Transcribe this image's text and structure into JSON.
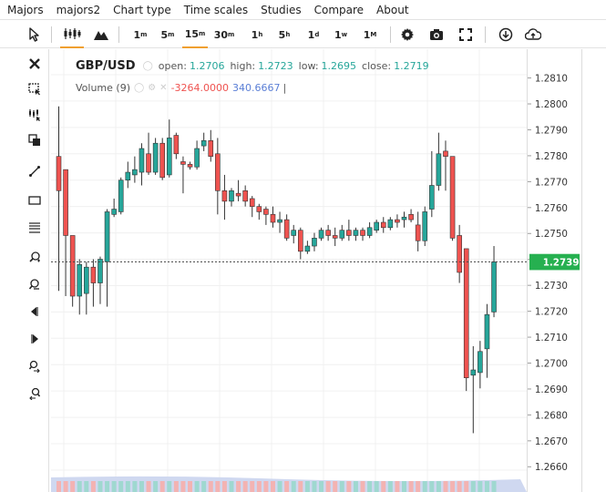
{
  "menu": [
    "Majors",
    "majors2",
    "Chart type",
    "Time scales",
    "Studies",
    "Compare",
    "About"
  ],
  "toolbar": {
    "timeframes": [
      {
        "num": "1",
        "unit": "m"
      },
      {
        "num": "5",
        "unit": "m"
      },
      {
        "num": "15",
        "unit": "m"
      },
      {
        "num": "30",
        "unit": "m"
      },
      {
        "num": "1",
        "unit": "h"
      },
      {
        "num": "5",
        "unit": "h"
      },
      {
        "num": "1",
        "unit": "d"
      },
      {
        "num": "1",
        "unit": "w"
      },
      {
        "num": "1",
        "unit": "M"
      }
    ],
    "active_timeframe": "15m",
    "icons": [
      "cursor-icon",
      "candlestick-icon",
      "mountain-icon",
      "gear-icon",
      "camera-icon",
      "fullscreen-icon",
      "download-icon",
      "upload-icon"
    ]
  },
  "legend": {
    "symbol": "GBP/USD",
    "open_label": "open:",
    "open": "1.2706",
    "high_label": "high:",
    "high": "1.2723",
    "low_label": "low:",
    "low": "1.2695",
    "close_label": "close:",
    "close": "1.2719",
    "volume_label": "Volume (9)",
    "volume_val1": "-3264.0000",
    "volume_val2": "340.6667",
    "volume_cursor": "|"
  },
  "price_axis": {
    "ticks": [
      "1.2810",
      "1.2800",
      "1.2790",
      "1.2780",
      "1.2770",
      "1.2760",
      "1.2750",
      "1.2740",
      "1.2730",
      "1.2720",
      "1.2710",
      "1.2700",
      "1.2690",
      "1.2680",
      "1.2670",
      "1.2660"
    ],
    "current_price": "1.2739"
  },
  "colors": {
    "up": "#26a69a",
    "down": "#ef5350",
    "accent": "#f0a030",
    "price_tag": "#26b050"
  },
  "chart_data": {
    "type": "candlestick",
    "ylim": [
      1.2656,
      1.2818
    ],
    "candles": [
      {
        "o": 1.2779,
        "h": 1.2798,
        "l": 1.2728,
        "c": 1.2766
      },
      {
        "o": 1.2774,
        "h": 1.2774,
        "l": 1.2726,
        "c": 1.2749
      },
      {
        "o": 1.2749,
        "h": 1.2749,
        "l": 1.2722,
        "c": 1.2726
      },
      {
        "o": 1.2726,
        "h": 1.274,
        "l": 1.2719,
        "c": 1.2738
      },
      {
        "o": 1.2727,
        "h": 1.2739,
        "l": 1.2719,
        "c": 1.2737
      },
      {
        "o": 1.2737,
        "h": 1.274,
        "l": 1.2722,
        "c": 1.2731
      },
      {
        "o": 1.2731,
        "h": 1.2741,
        "l": 1.2723,
        "c": 1.274
      },
      {
        "o": 1.2739,
        "h": 1.2759,
        "l": 1.2722,
        "c": 1.2758
      },
      {
        "o": 1.2757,
        "h": 1.2763,
        "l": 1.2756,
        "c": 1.2759
      },
      {
        "o": 1.2758,
        "h": 1.2771,
        "l": 1.2757,
        "c": 1.277
      },
      {
        "o": 1.277,
        "h": 1.2777,
        "l": 1.2767,
        "c": 1.2773
      },
      {
        "o": 1.2772,
        "h": 1.2779,
        "l": 1.2769,
        "c": 1.2774
      },
      {
        "o": 1.2773,
        "h": 1.2784,
        "l": 1.2768,
        "c": 1.2782
      },
      {
        "o": 1.278,
        "h": 1.2788,
        "l": 1.2772,
        "c": 1.2773
      },
      {
        "o": 1.2773,
        "h": 1.2786,
        "l": 1.2772,
        "c": 1.2784
      },
      {
        "o": 1.2784,
        "h": 1.2786,
        "l": 1.277,
        "c": 1.2771
      },
      {
        "o": 1.2772,
        "h": 1.2793,
        "l": 1.2771,
        "c": 1.2786
      },
      {
        "o": 1.2787,
        "h": 1.2788,
        "l": 1.2778,
        "c": 1.278
      },
      {
        "o": 1.2777,
        "h": 1.2779,
        "l": 1.2765,
        "c": 1.2776
      },
      {
        "o": 1.2776,
        "h": 1.2777,
        "l": 1.2774,
        "c": 1.2775
      },
      {
        "o": 1.2775,
        "h": 1.2785,
        "l": 1.2774,
        "c": 1.2782
      },
      {
        "o": 1.2783,
        "h": 1.2788,
        "l": 1.2781,
        "c": 1.2785
      },
      {
        "o": 1.2785,
        "h": 1.2789,
        "l": 1.2777,
        "c": 1.2779
      },
      {
        "o": 1.278,
        "h": 1.2786,
        "l": 1.2757,
        "c": 1.2766
      },
      {
        "o": 1.2766,
        "h": 1.2772,
        "l": 1.2755,
        "c": 1.2762
      },
      {
        "o": 1.2762,
        "h": 1.2767,
        "l": 1.276,
        "c": 1.2766
      },
      {
        "o": 1.2765,
        "h": 1.277,
        "l": 1.2762,
        "c": 1.2764
      },
      {
        "o": 1.2766,
        "h": 1.2768,
        "l": 1.276,
        "c": 1.2762
      },
      {
        "o": 1.2763,
        "h": 1.2764,
        "l": 1.2756,
        "c": 1.276
      },
      {
        "o": 1.276,
        "h": 1.2761,
        "l": 1.2755,
        "c": 1.2758
      },
      {
        "o": 1.2759,
        "h": 1.276,
        "l": 1.2753,
        "c": 1.2757
      },
      {
        "o": 1.2757,
        "h": 1.276,
        "l": 1.2752,
        "c": 1.2754
      },
      {
        "o": 1.2754,
        "h": 1.2758,
        "l": 1.275,
        "c": 1.2755
      },
      {
        "o": 1.2755,
        "h": 1.2757,
        "l": 1.2747,
        "c": 1.2748
      },
      {
        "o": 1.2749,
        "h": 1.2753,
        "l": 1.2746,
        "c": 1.2751
      },
      {
        "o": 1.2751,
        "h": 1.2752,
        "l": 1.274,
        "c": 1.2743
      },
      {
        "o": 1.2743,
        "h": 1.2747,
        "l": 1.2742,
        "c": 1.2745
      },
      {
        "o": 1.2745,
        "h": 1.275,
        "l": 1.2743,
        "c": 1.2748
      },
      {
        "o": 1.2748,
        "h": 1.2752,
        "l": 1.2747,
        "c": 1.2751
      },
      {
        "o": 1.2751,
        "h": 1.2753,
        "l": 1.2747,
        "c": 1.2749
      },
      {
        "o": 1.2749,
        "h": 1.2752,
        "l": 1.2745,
        "c": 1.2748
      },
      {
        "o": 1.2748,
        "h": 1.2753,
        "l": 1.2747,
        "c": 1.2751
      },
      {
        "o": 1.2751,
        "h": 1.2755,
        "l": 1.2747,
        "c": 1.2749
      },
      {
        "o": 1.2749,
        "h": 1.2752,
        "l": 1.2747,
        "c": 1.2751
      },
      {
        "o": 1.2751,
        "h": 1.2752,
        "l": 1.2747,
        "c": 1.2749
      },
      {
        "o": 1.2749,
        "h": 1.2754,
        "l": 1.2748,
        "c": 1.2752
      },
      {
        "o": 1.2751,
        "h": 1.2755,
        "l": 1.275,
        "c": 1.2754
      },
      {
        "o": 1.2754,
        "h": 1.2756,
        "l": 1.275,
        "c": 1.2752
      },
      {
        "o": 1.2752,
        "h": 1.2756,
        "l": 1.2751,
        "c": 1.2755
      },
      {
        "o": 1.2755,
        "h": 1.2757,
        "l": 1.2752,
        "c": 1.2754
      },
      {
        "o": 1.2755,
        "h": 1.2758,
        "l": 1.2752,
        "c": 1.2756
      },
      {
        "o": 1.2757,
        "h": 1.2759,
        "l": 1.2754,
        "c": 1.2755
      },
      {
        "o": 1.2753,
        "h": 1.2758,
        "l": 1.2743,
        "c": 1.2747
      },
      {
        "o": 1.2747,
        "h": 1.276,
        "l": 1.2745,
        "c": 1.2758
      },
      {
        "o": 1.2759,
        "h": 1.2781,
        "l": 1.2756,
        "c": 1.2768
      },
      {
        "o": 1.2768,
        "h": 1.2788,
        "l": 1.2766,
        "c": 1.278
      },
      {
        "o": 1.2781,
        "h": 1.2785,
        "l": 1.2766,
        "c": 1.2779
      },
      {
        "o": 1.2779,
        "h": 1.2779,
        "l": 1.2747,
        "c": 1.2748
      },
      {
        "o": 1.2749,
        "h": 1.2753,
        "l": 1.2731,
        "c": 1.2735
      },
      {
        "o": 1.2744,
        "h": 1.2744,
        "l": 1.269,
        "c": 1.2695
      },
      {
        "o": 1.2696,
        "h": 1.2707,
        "l": 1.2674,
        "c": 1.2698
      },
      {
        "o": 1.2697,
        "h": 1.2709,
        "l": 1.2691,
        "c": 1.2705
      },
      {
        "o": 1.2706,
        "h": 1.2723,
        "l": 1.2695,
        "c": 1.2719
      },
      {
        "o": 1.272,
        "h": 1.2745,
        "l": 1.2718,
        "c": 1.2739
      }
    ]
  }
}
